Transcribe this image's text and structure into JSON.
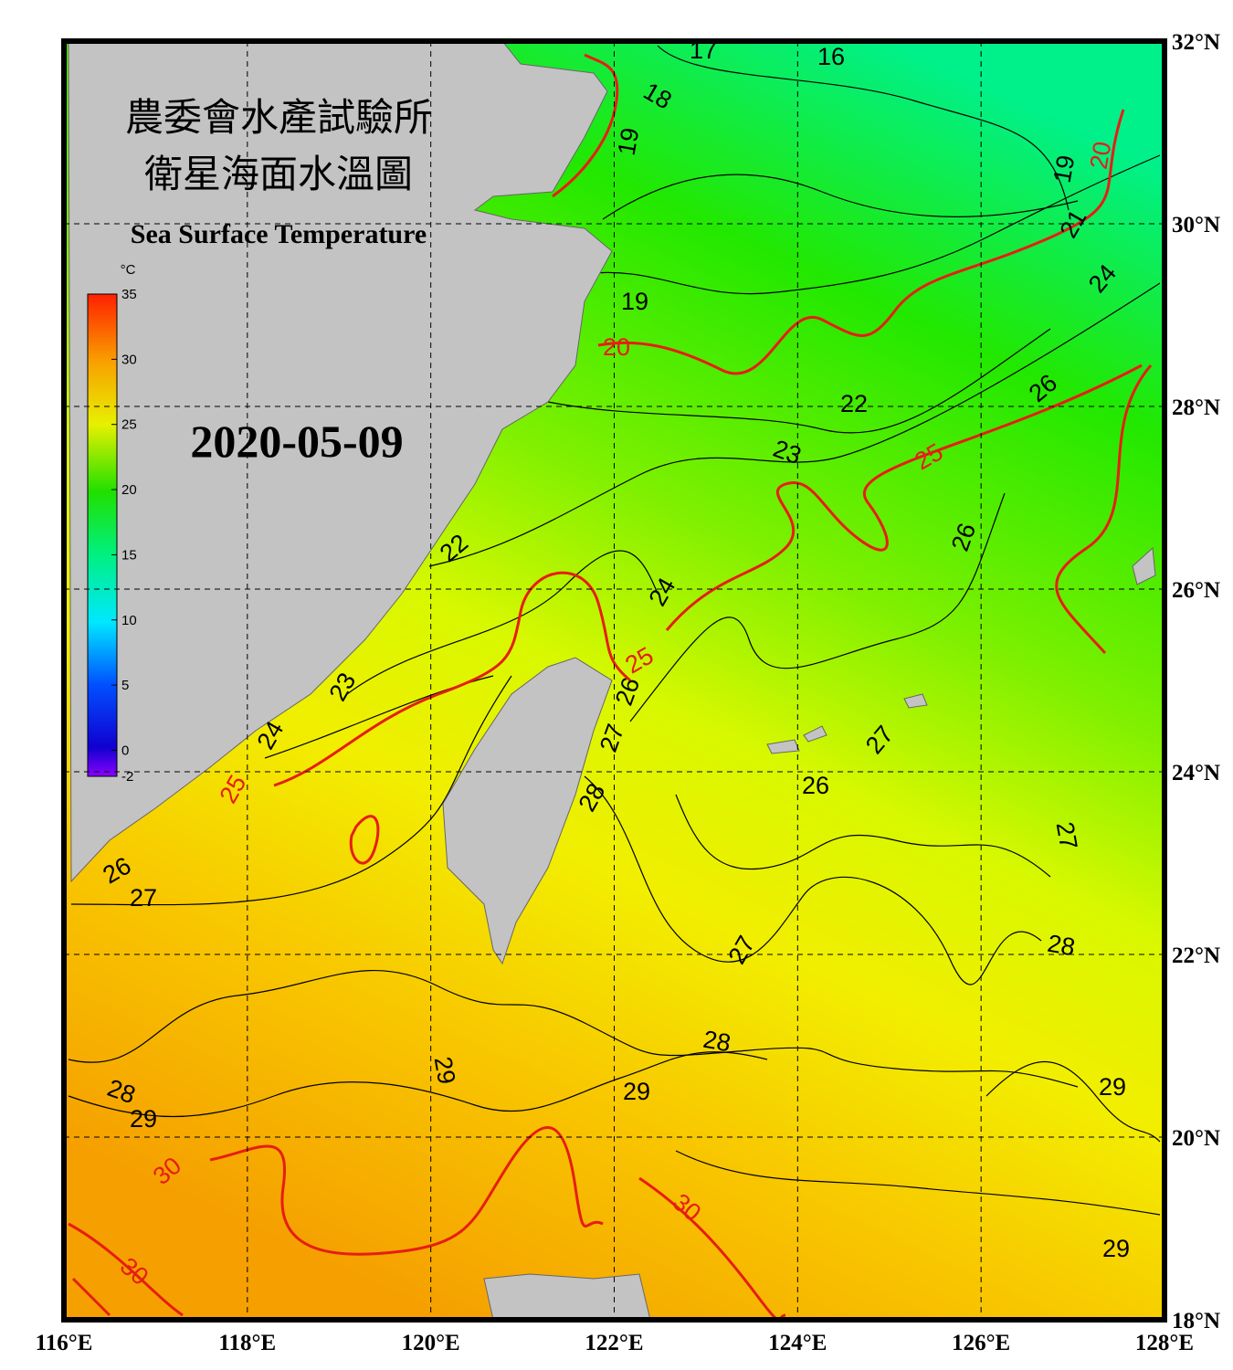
{
  "header": {
    "title": [
      "農委會水產試驗所",
      "衛星海面水溫圖"
    ],
    "subtitle": "Sea Surface Temperature",
    "date": "2020-05-09"
  },
  "colorbar": {
    "unit": "°C",
    "ticks": [
      35,
      30,
      25,
      20,
      15,
      10,
      5,
      0,
      -2
    ]
  },
  "lon_ticks": [
    {
      "value": 116,
      "label": "116°E"
    },
    {
      "value": 118,
      "label": "118°E"
    },
    {
      "value": 120,
      "label": "120°E"
    },
    {
      "value": 122,
      "label": "122°E"
    },
    {
      "value": 124,
      "label": "124°E"
    },
    {
      "value": 126,
      "label": "126°E"
    },
    {
      "value": 128,
      "label": "128°E"
    }
  ],
  "lat_ticks": [
    {
      "value": 32,
      "label": "32°N"
    },
    {
      "value": 30,
      "label": "30°N"
    },
    {
      "value": 28,
      "label": "28°N"
    },
    {
      "value": 26,
      "label": "26°N"
    },
    {
      "value": 24,
      "label": "24°N"
    },
    {
      "value": 22,
      "label": "22°N"
    },
    {
      "value": 20,
      "label": "20°N"
    },
    {
      "value": 18,
      "label": "18°N"
    }
  ],
  "contour_labels": [
    17,
    16,
    18,
    19,
    20,
    19,
    21,
    19,
    20,
    24,
    22,
    26,
    23,
    25,
    26,
    22,
    24,
    25,
    26,
    23,
    27,
    27,
    24,
    26,
    28,
    25,
    27,
    26,
    27,
    28,
    27,
    28,
    29,
    29,
    29,
    28,
    29,
    30,
    30,
    30,
    29
  ]
}
